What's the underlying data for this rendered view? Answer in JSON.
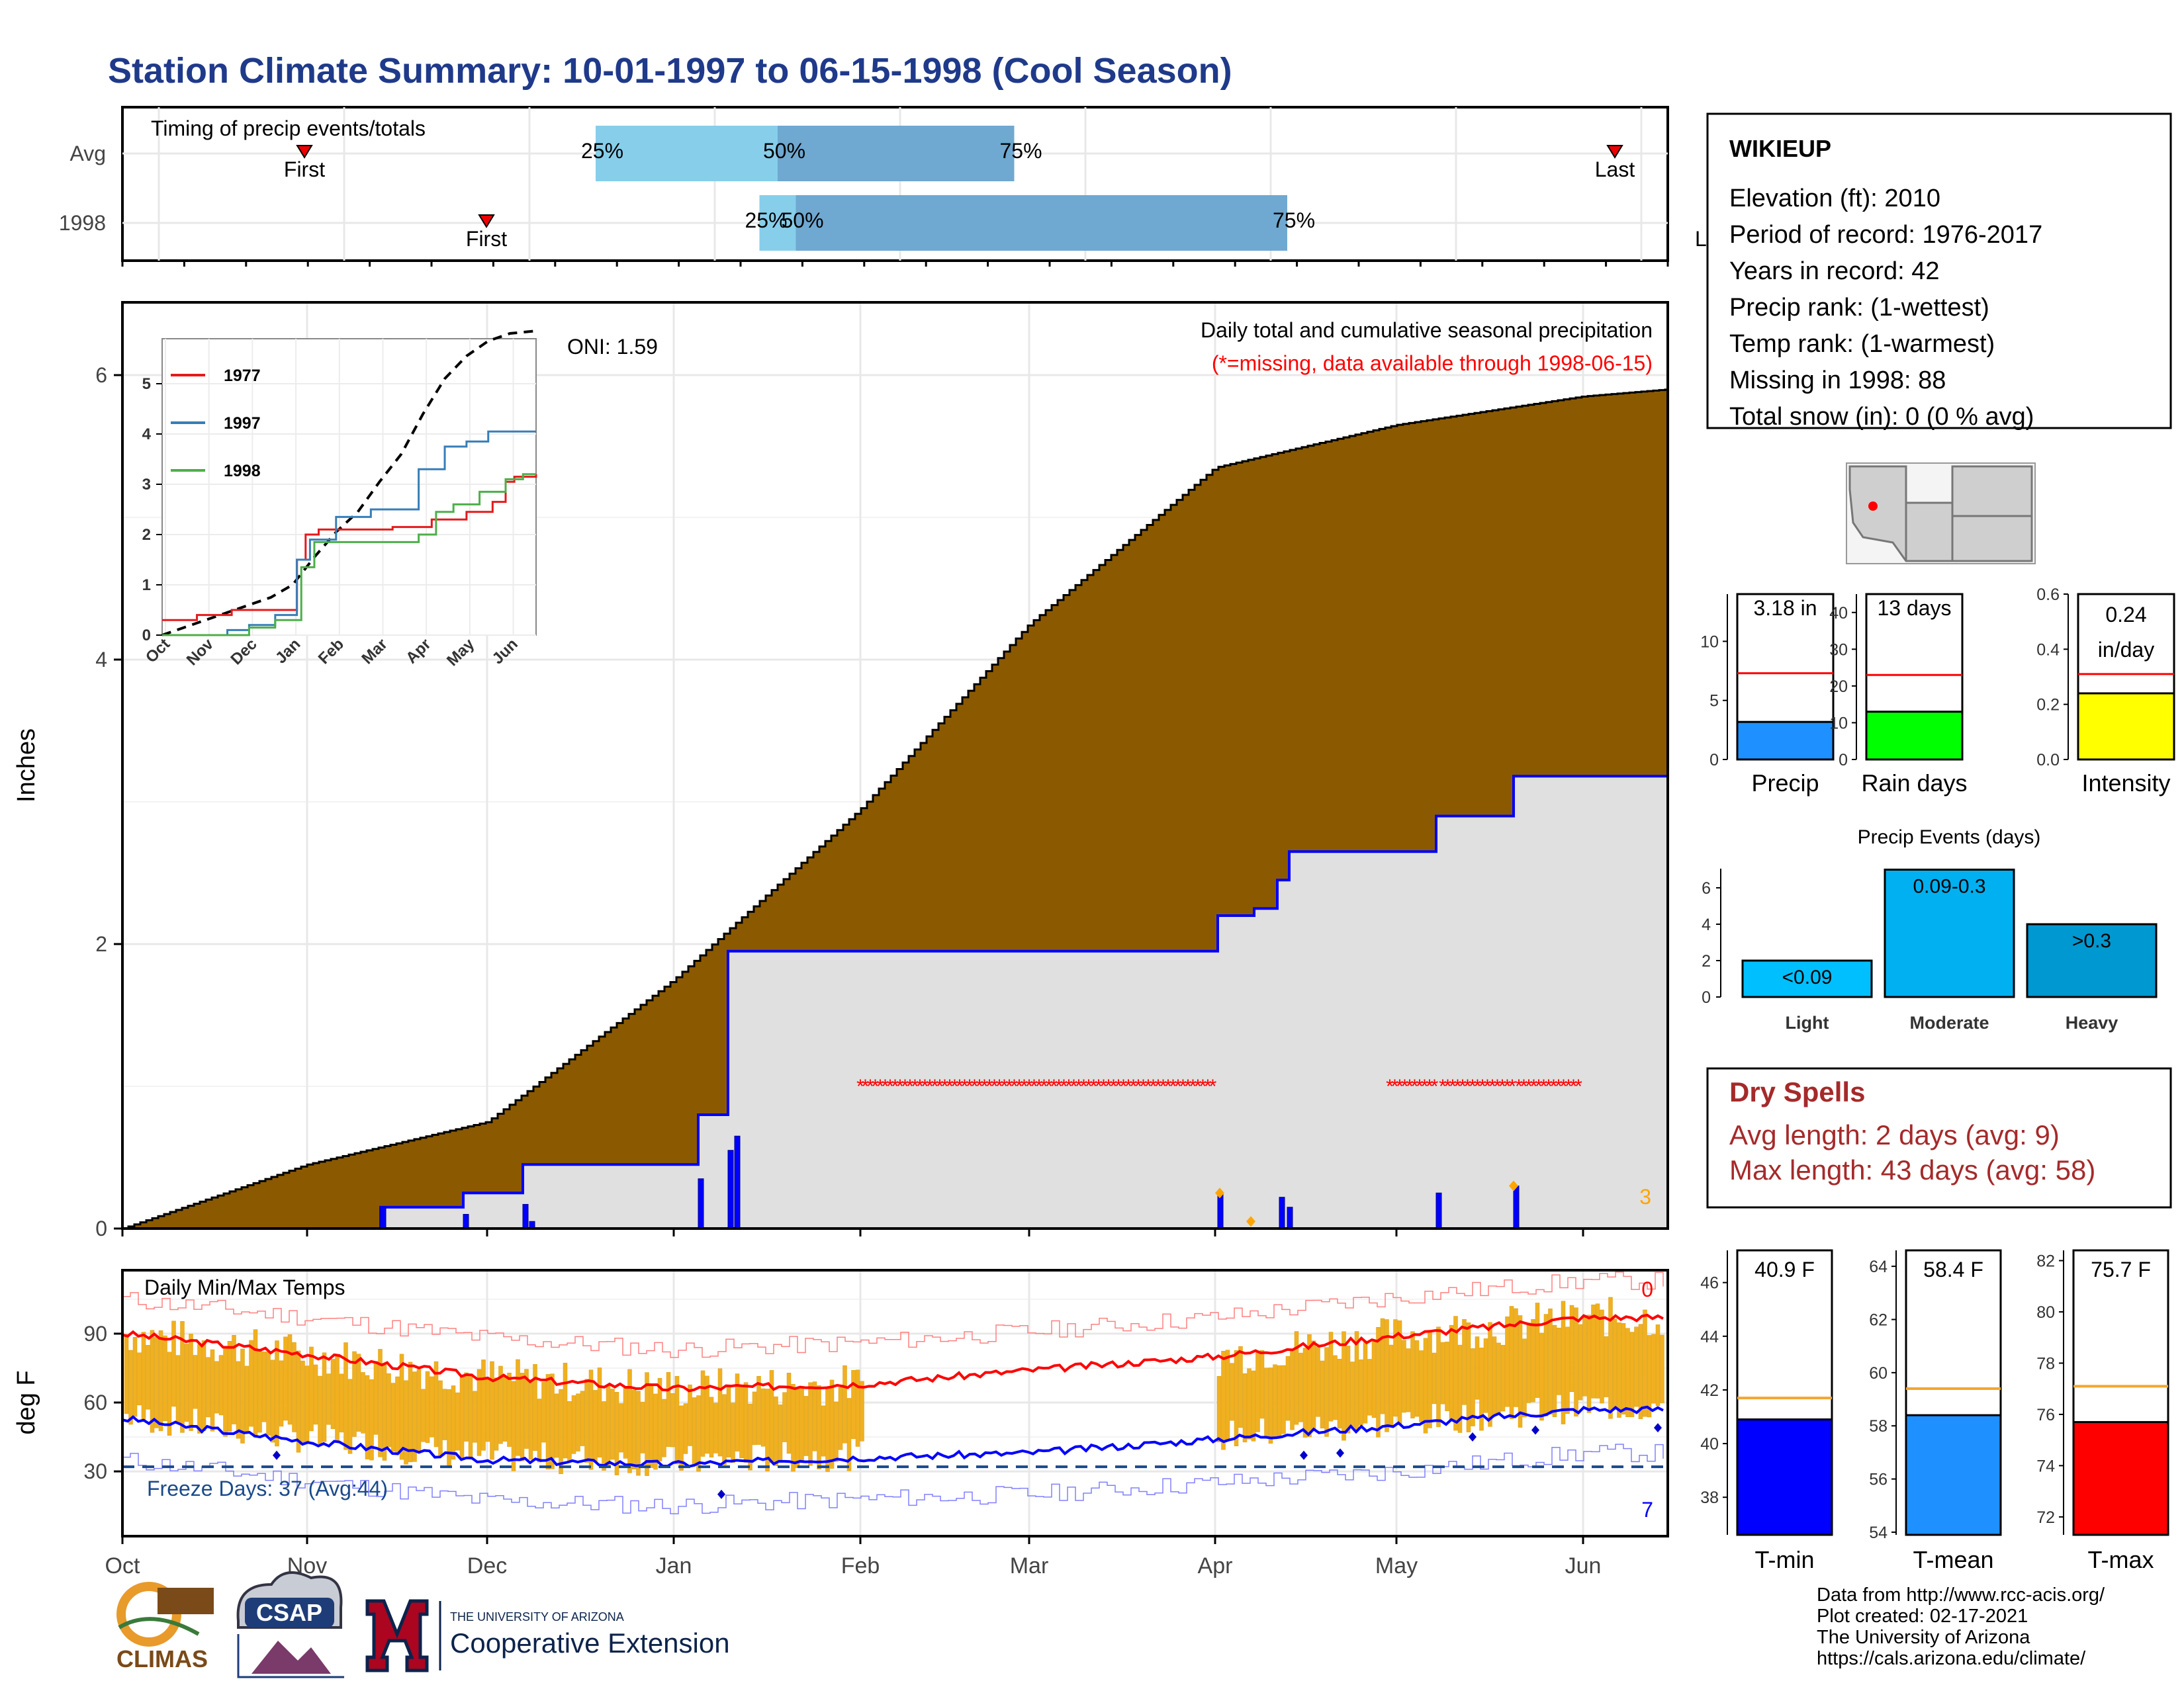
{
  "title": "Station Climate Summary: 10-01-1997 to 06-15-1998 (Cool Season)",
  "colors": {
    "title": "#1f3a8a",
    "accum": "#8b5a00",
    "gray": "#e0e0e0",
    "light_blue": "#87ceeb",
    "mid_blue": "#6fa8d0",
    "red": "#ff0000",
    "blue": "#0000ff",
    "orange": "#f0b020",
    "navy": "#1a4a8a"
  },
  "timing": {
    "label": "Timing of precip events/totals",
    "rows": [
      "Avg",
      "1998"
    ],
    "first_label": "First",
    "last_label": "Last",
    "p25": "25%",
    "p50": "50%",
    "p75": "75%",
    "avg": {
      "first": 1.0,
      "p25": 2.6,
      "p50": 3.6,
      "p75": 4.9,
      "last": 8.2
    },
    "y1998": {
      "first": 2.0,
      "p25": 3.5,
      "p50": 3.7,
      "p75": 6.4,
      "last": 8.75
    }
  },
  "precip_panel": {
    "ylabel": "Inches",
    "yticks": [
      "0",
      "2",
      "4",
      "6"
    ],
    "caption": "Daily total and cumulative seasonal precipitation",
    "note": "(*=missing, data available through 1998-06-15)",
    "oni": "ONI: 1.59",
    "count_label": "3"
  },
  "inset": {
    "yticks": [
      "0",
      "1",
      "2",
      "3",
      "4",
      "5"
    ],
    "months": [
      "Oct",
      "Nov",
      "Dec",
      "Jan",
      "Feb",
      "Mar",
      "Apr",
      "May",
      "Jun"
    ],
    "legend": [
      {
        "name": "1977",
        "color": "#e41a1c"
      },
      {
        "name": "1997",
        "color": "#377eb8"
      },
      {
        "name": "1998",
        "color": "#4daf4a"
      }
    ]
  },
  "temp_panel": {
    "ylabel": "deg F",
    "label": "Daily Min/Max Temps",
    "yticks": [
      "30",
      "60",
      "90"
    ],
    "freeze": "Freeze Days: 37 (Avg:44)",
    "hot_count": "0",
    "cold_count": "7"
  },
  "months": [
    "Oct",
    "Nov",
    "Dec",
    "Jan",
    "Feb",
    "Mar",
    "Apr",
    "May",
    "Jun"
  ],
  "station": {
    "name": "WIKIEUP",
    "lines": [
      "Elevation (ft): 2010",
      "Period of record: 1976-2017",
      "Years in record: 42",
      "Precip rank:  (1-wettest)",
      "Temp rank:  (1-warmest)",
      "Missing in 1998: 88",
      "Total snow (in): 0 (0 % avg)"
    ]
  },
  "small_bars": [
    {
      "label": "Precip",
      "value_text": "3.18 in",
      "value": 3.18,
      "avg": 7.3,
      "ymax": 14,
      "ticks": [
        "0",
        "5",
        "10"
      ],
      "color": "#1e90ff"
    },
    {
      "label": "Rain days",
      "value_text": "13 days",
      "value": 13,
      "avg": 23,
      "ymax": 45,
      "ticks": [
        "0",
        "10",
        "20",
        "30",
        "40"
      ],
      "color": "#00ff00"
    },
    {
      "label": "Intensity",
      "value_text": "0.24 in/day",
      "value": 0.24,
      "avg": 0.31,
      "ymax": 0.6,
      "ticks": [
        "0.0",
        "0.2",
        "0.4",
        "0.6"
      ],
      "color": "#ffff00"
    }
  ],
  "events": {
    "title": "Precip Events (days)",
    "ticks": [
      "0",
      "2",
      "4",
      "6"
    ],
    "bars": [
      {
        "cat": "Light",
        "label": "<0.09",
        "value": 2,
        "color": "#00bfff"
      },
      {
        "cat": "Moderate",
        "label": "0.09-0.3",
        "value": 7,
        "color": "#00b0f0"
      },
      {
        "cat": "Heavy",
        "label": ">0.3",
        "value": 4,
        "color": "#0098d0"
      }
    ]
  },
  "dry": {
    "title": "Dry Spells",
    "avg": "Avg length: 2 days (avg: 9)",
    "max": "Max length: 43 days (avg: 58)"
  },
  "temp_bars": [
    {
      "label": "T-min",
      "value_text": "40.9 F",
      "value": 40.9,
      "avg": 41.7,
      "ymin": 36.6,
      "ymax": 47.2,
      "ticks": [
        "38",
        "40",
        "42",
        "44",
        "46"
      ],
      "tickvals": [
        38,
        40,
        42,
        44,
        46
      ],
      "color": "#0000ff"
    },
    {
      "label": "T-mean",
      "value_text": "58.4 F",
      "value": 58.4,
      "avg": 59.4,
      "ymin": 53.9,
      "ymax": 64.6,
      "ticks": [
        "54",
        "56",
        "58",
        "60",
        "62",
        "64"
      ],
      "tickvals": [
        54,
        56,
        58,
        60,
        62,
        64
      ],
      "color": "#1e90ff"
    },
    {
      "label": "T-max",
      "value_text": "75.7 F",
      "value": 75.7,
      "avg": 77.1,
      "ymin": 71.3,
      "ymax": 82.4,
      "ticks": [
        "72",
        "74",
        "76",
        "78",
        "80",
        "82"
      ],
      "tickvals": [
        72,
        74,
        76,
        78,
        80,
        82
      ],
      "color": "#ff0000"
    }
  ],
  "credits": [
    "Data from http://www.rcc-acis.org/",
    "Plot created: 02-17-2021",
    "The University of Arizona",
    "https://cals.arizona.edu/climate/"
  ],
  "logos": {
    "climas": "CLIMAS",
    "csap": "CSAP",
    "ua_small": "THE UNIVERSITY OF ARIZONA",
    "ua_big": "Cooperative Extension"
  },
  "chart_data": [
    {
      "type": "area",
      "title": "Daily total and cumulative seasonal precipitation",
      "ylabel": "Inches",
      "ylim": [
        0,
        6.4
      ],
      "x": [
        "Oct",
        "Nov",
        "Dec",
        "Jan",
        "Feb",
        "Mar",
        "Apr",
        "May",
        "Jun",
        "Jun 15"
      ],
      "series": [
        {
          "name": "Average cumulative",
          "values": [
            0.0,
            0.45,
            0.75,
            1.75,
            2.95,
            4.25,
            5.35,
            5.65,
            5.85,
            5.9
          ]
        },
        {
          "name": "1998 cumulative",
          "values": [
            0.0,
            0.0,
            0.15,
            0.45,
            1.95,
            1.95,
            2.2,
            2.85,
            3.05,
            3.18
          ]
        }
      ]
    },
    {
      "type": "line",
      "title": "Daily Min/Max Temps",
      "ylabel": "deg F",
      "x": [
        "Oct",
        "Nov",
        "Dec",
        "Jan",
        "Feb",
        "Mar",
        "Apr",
        "May",
        "Jun"
      ],
      "series": [
        {
          "name": "Avg max",
          "values": [
            90,
            81,
            71,
            66,
            68,
            74,
            80,
            89,
            97
          ]
        },
        {
          "name": "Avg min",
          "values": [
            53,
            43,
            35,
            33,
            36,
            38,
            44,
            50,
            57
          ]
        }
      ]
    },
    {
      "type": "bar",
      "title": "Precip Events (days)",
      "categories": [
        "Light",
        "Moderate",
        "Heavy"
      ],
      "values": [
        2,
        7,
        4
      ]
    }
  ]
}
